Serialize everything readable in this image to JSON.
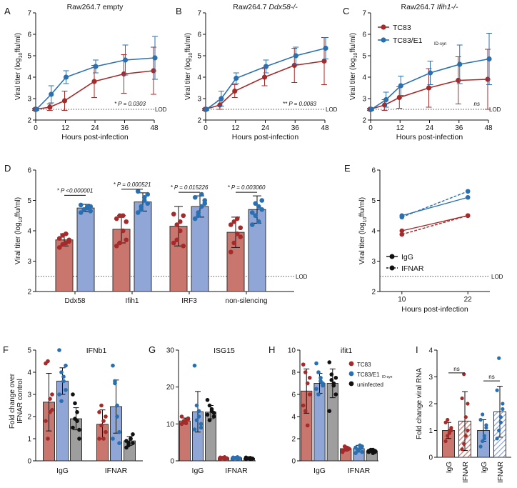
{
  "colors": {
    "red": "#a52a2a",
    "blue": "#2a6fb0",
    "red_fill": "#c9766f",
    "blue_fill": "#8fa6d6",
    "black": "#111111",
    "gray_fill": "#9e9e9e"
  },
  "chart_data": [
    {
      "id": "A",
      "panel_label": "A",
      "type": "line",
      "title": "Raw264.7 empty",
      "title_italic": "",
      "xlabel": "Hours post-infection",
      "ylabel": "Viral titer (log10 ffu/ml)",
      "x": [
        0,
        6,
        12,
        24,
        36,
        48
      ],
      "xticks": [
        "0",
        "12",
        "24",
        "36",
        "48"
      ],
      "xlim": [
        0,
        48
      ],
      "yticks": [
        "2",
        "3",
        "4",
        "5",
        "6",
        "7"
      ],
      "ylim": [
        2,
        7
      ],
      "series": [
        {
          "name": "TC83",
          "values": [
            2.5,
            2.6,
            2.9,
            3.8,
            4.15,
            4.3
          ],
          "err": [
            0.05,
            0.15,
            0.45,
            0.75,
            0.9,
            1.1
          ]
        },
        {
          "name": "TC83/E1 ID-syn",
          "values": [
            2.5,
            3.2,
            4.0,
            4.5,
            4.8,
            4.9
          ],
          "err": [
            0.05,
            0.4,
            0.3,
            0.3,
            0.7,
            1.0
          ]
        }
      ],
      "annotation": "* P = 0.0303",
      "lod": 2.5,
      "lod_label": "LOD"
    },
    {
      "id": "B",
      "panel_label": "B",
      "type": "line",
      "title": "Raw264.7 ",
      "title_italic": "Ddx58-/-",
      "xlabel": "Hours post-infection",
      "ylabel": "Viral titer (log10 ffu/ml)",
      "x": [
        0,
        6,
        12,
        24,
        36,
        48
      ],
      "xticks": [
        "0",
        "12",
        "24",
        "36",
        "48"
      ],
      "xlim": [
        0,
        48
      ],
      "yticks": [
        "2",
        "3",
        "4",
        "5",
        "6",
        "7"
      ],
      "ylim": [
        2,
        7
      ],
      "series": [
        {
          "name": "TC83",
          "values": [
            2.5,
            2.7,
            3.35,
            4.0,
            4.55,
            4.75
          ],
          "err": [
            0.05,
            0.2,
            0.3,
            0.4,
            0.8,
            1.1
          ]
        },
        {
          "name": "TC83/E1 ID-syn",
          "values": [
            2.5,
            3.0,
            3.95,
            4.5,
            5.0,
            5.35
          ],
          "err": [
            0.05,
            0.35,
            0.25,
            0.3,
            0.4,
            0.5
          ]
        }
      ],
      "annotation": "** P = 0.0083",
      "lod": 2.5,
      "lod_label": "LOD"
    },
    {
      "id": "C",
      "panel_label": "C",
      "type": "line",
      "title": "Raw264.7 ",
      "title_italic": "Ifih1-/-",
      "xlabel": "Hours post-infection",
      "ylabel": "Viral titer (log10 ffu/ml)",
      "x": [
        0,
        6,
        12,
        24,
        36,
        48
      ],
      "xticks": [
        "0",
        "12",
        "24",
        "36",
        "48"
      ],
      "xlim": [
        0,
        48
      ],
      "yticks": [
        "2",
        "3",
        "4",
        "5",
        "6",
        "7"
      ],
      "ylim": [
        2,
        7
      ],
      "series": [
        {
          "name": "TC83",
          "values": [
            2.5,
            2.7,
            3.05,
            3.5,
            3.85,
            3.9
          ],
          "err": [
            0.05,
            0.25,
            0.5,
            0.9,
            1.1,
            1.4
          ]
        },
        {
          "name": "TC83/E1 ID-syn",
          "values": [
            2.5,
            2.95,
            3.6,
            4.2,
            4.6,
            4.85
          ],
          "err": [
            0.05,
            0.35,
            0.45,
            0.55,
            0.9,
            1.2
          ]
        }
      ],
      "legend": [
        "TC83",
        "TC83/E1",
        "ID-syn"
      ],
      "annotation": "ns",
      "lod": 2.5,
      "lod_label": "LOD"
    },
    {
      "id": "D",
      "panel_label": "D",
      "type": "bar",
      "ylabel": "Viral titer (log10 ffu/ml)",
      "categories": [
        "Ddx58",
        "Ifih1",
        "IRF3",
        "non-silencing"
      ],
      "yticks": [
        "2",
        "3",
        "4",
        "5",
        "6"
      ],
      "ylim": [
        2,
        6
      ],
      "series": [
        {
          "name": "TC83",
          "values": [
            3.7,
            4.05,
            4.15,
            3.95
          ],
          "err": [
            0.2,
            0.45,
            0.65,
            0.5
          ]
        },
        {
          "name": "TC83/E1 ID-syn",
          "values": [
            4.75,
            4.95,
            4.8,
            4.7
          ],
          "err": [
            0.12,
            0.3,
            0.35,
            0.45
          ]
        }
      ],
      "points": [
        [
          [
            3.45,
            3.55,
            3.6,
            3.7,
            3.75,
            3.85,
            3.9,
            3.65
          ],
          [
            4.6,
            4.7,
            4.75,
            4.8,
            4.85,
            4.7,
            4.8,
            4.65
          ]
        ],
        [
          [
            3.5,
            3.6,
            4.0,
            4.3,
            4.4,
            4.5,
            4.5,
            3.7
          ],
          [
            4.6,
            4.8,
            5.0,
            5.2,
            5.3,
            4.7,
            5.1,
            4.9
          ]
        ],
        [
          [
            3.6,
            3.7,
            4.0,
            4.5,
            4.55,
            4.2,
            4.3,
            3.5
          ],
          [
            4.4,
            4.5,
            4.8,
            5.0,
            5.1,
            4.6,
            5.2,
            4.9
          ]
        ],
        [
          [
            3.3,
            3.6,
            3.9,
            4.1,
            4.2,
            4.3,
            4.4,
            3.8
          ],
          [
            4.2,
            4.5,
            4.8,
            5.0,
            4.6,
            4.9,
            4.3,
            4.7
          ]
        ]
      ],
      "annotations": [
        "* P <0.000001",
        "* P = 0.000521",
        "* P = 0.015226",
        "* P = 0.003060"
      ],
      "lod": 2.5,
      "lod_label": "LOD"
    },
    {
      "id": "E",
      "panel_label": "E",
      "type": "line",
      "xlabel": "Hours post-infection",
      "ylabel": "Viral titer (log10 ffu/ml)",
      "x": [
        10,
        22
      ],
      "xticks": [
        "10",
        "22"
      ],
      "xlim": [
        6,
        26
      ],
      "yticks": [
        "2",
        "3",
        "4",
        "5",
        "6"
      ],
      "ylim": [
        2,
        6
      ],
      "series": [
        {
          "name": "IgG",
          "color": "blue",
          "dash": false,
          "values": [
            4.5,
            5.1
          ]
        },
        {
          "name": "IFNAR",
          "color": "blue",
          "dash": true,
          "values": [
            4.45,
            5.3
          ]
        },
        {
          "name": "IgG",
          "color": "red",
          "dash": false,
          "values": [
            4.0,
            4.5
          ]
        },
        {
          "name": "IFNAR",
          "color": "red",
          "dash": true,
          "values": [
            3.88,
            4.5
          ]
        }
      ],
      "legend": [
        "IgG",
        "IFNAR"
      ],
      "lod": 2.5,
      "lod_label": "LOD"
    },
    {
      "id": "F",
      "panel_label": "F",
      "type": "bar",
      "title": "IFNb1",
      "ylabel": "Fold change over IFNAR control",
      "categories": [
        "IgG",
        "IFNAR"
      ],
      "yticks": [
        "0",
        "1",
        "2",
        "3",
        "4",
        "5"
      ],
      "ylim": [
        0,
        5
      ],
      "series": [
        {
          "name": "TC83",
          "values": [
            2.65,
            1.65
          ],
          "err": [
            1.3,
            0.65
          ]
        },
        {
          "name": "TC83/E1 ID-syn",
          "values": [
            3.6,
            2.45
          ],
          "err": [
            0.6,
            1.2
          ]
        },
        {
          "name": "uninfected",
          "values": [
            1.9,
            0.9
          ],
          "err": [
            0.5,
            0.2
          ]
        }
      ],
      "points": [
        [
          [
            4.4,
            4.5,
            2.8,
            2.3,
            1.8,
            1.0,
            2.2,
            3.0
          ],
          [
            1.0,
            2.5,
            1.8,
            1.3,
            2.2,
            1.6,
            1.0,
            2.0
          ]
        ],
        [
          [
            5.0,
            4.0,
            3.8,
            3.2,
            3.0,
            2.7,
            3.6,
            4.3
          ],
          [
            4.3,
            3.6,
            2.5,
            1.3,
            1.0,
            3.5,
            2.0,
            0.8
          ]
        ],
        [
          [
            3.0,
            2.6,
            1.8,
            1.4,
            1.5,
            1.9,
            2.2,
            1.0
          ],
          [
            0.6,
            0.8,
            1.0,
            1.2,
            0.9,
            0.7,
            1.0,
            0.8
          ]
        ]
      ]
    },
    {
      "id": "G",
      "panel_label": "G",
      "type": "bar",
      "title": "ISG15",
      "categories": [
        "IgG",
        "IFNAR"
      ],
      "yticks": [
        "0",
        "10",
        "20",
        "30"
      ],
      "ylim": [
        0,
        30
      ],
      "series": [
        {
          "name": "TC83",
          "values": [
            10.8,
            0.8
          ],
          "err": [
            0.8,
            0.2
          ]
        },
        {
          "name": "TC83/E1 ID-syn",
          "values": [
            13.3,
            0.8
          ],
          "err": [
            5.5,
            0.2
          ]
        },
        {
          "name": "uninfected",
          "values": [
            13.2,
            0.7
          ],
          "err": [
            1.8,
            0.2
          ]
        }
      ],
      "points": [
        [
          [
            10.0,
            10.5,
            11.0,
            11.5,
            12.0,
            10.8,
            10.2,
            11.3
          ],
          [
            0.6,
            0.8,
            1.0,
            0.7,
            0.9,
            0.8,
            0.6,
            0.7
          ]
        ],
        [
          [
            25.8,
            15.0,
            12.0,
            10.0,
            8.5,
            11.0,
            13.5,
            9.0
          ],
          [
            0.6,
            0.8,
            1.0,
            0.7,
            0.9,
            0.8,
            0.6,
            0.7
          ]
        ],
        [
          [
            16.5,
            15.0,
            13.5,
            12.0,
            12.5,
            11.0,
            14.0,
            13.0
          ],
          [
            0.5,
            0.7,
            0.8,
            0.6,
            0.9,
            0.7,
            0.5,
            0.6
          ]
        ]
      ]
    },
    {
      "id": "H",
      "panel_label": "H",
      "type": "bar",
      "title": "ifit1",
      "categories": [
        "IgG",
        "IFNAR"
      ],
      "yticks": [
        "0",
        "2",
        "4",
        "6",
        "8",
        "10"
      ],
      "ylim": [
        0,
        10
      ],
      "series": [
        {
          "name": "TC83",
          "values": [
            6.3,
            1.1
          ],
          "err": [
            2.0,
            0.2
          ]
        },
        {
          "name": "TC83/E1 ID-syn",
          "values": [
            7.0,
            1.1
          ],
          "err": [
            0.9,
            0.3
          ]
        },
        {
          "name": "uninfected",
          "values": [
            7.0,
            0.9
          ],
          "err": [
            1.3,
            0.1
          ]
        }
      ],
      "points": [
        [
          [
            8.7,
            8.0,
            7.0,
            6.0,
            5.0,
            4.5,
            3.2,
            7.5
          ],
          [
            0.8,
            1.0,
            1.2,
            1.1,
            0.9,
            1.3,
            1.0,
            1.1
          ]
        ],
        [
          [
            8.8,
            8.0,
            7.5,
            7.0,
            6.5,
            6.0,
            7.2,
            6.8
          ],
          [
            0.7,
            0.9,
            1.1,
            1.3,
            1.2,
            1.0,
            1.4,
            0.8
          ]
        ],
        [
          [
            8.9,
            7.8,
            7.0,
            6.0,
            4.5,
            7.3,
            6.8,
            7.5
          ],
          [
            0.8,
            0.9,
            1.0,
            0.8,
            0.9,
            1.0,
            0.7,
            0.9
          ]
        ]
      ],
      "legend": [
        "TC83",
        "TC83/E1",
        "ID-syn",
        "uninfected"
      ]
    },
    {
      "id": "I",
      "panel_label": "I",
      "type": "bar",
      "ylabel": "Fold change viral RNA",
      "categories": [
        "IgG",
        "IFNAR",
        "IgG",
        "IFNAR"
      ],
      "yticks": [
        "0",
        "1",
        "2",
        "3",
        "4"
      ],
      "ylim": [
        0,
        4
      ],
      "values": [
        1.0,
        1.35,
        1.0,
        1.7
      ],
      "err": [
        0.3,
        1.1,
        0.4,
        0.95
      ],
      "groups": [
        "TC83",
        "TC83",
        "TC83/E1 ID-syn",
        "TC83/E1 ID-syn"
      ],
      "points": [
        [
          0.6,
          0.8,
          1.0,
          1.1,
          1.3,
          1.4,
          0.9,
          1.0
        ],
        [
          0.3,
          0.5,
          1.5,
          2.0,
          2.2,
          3.1,
          0.8,
          1.0
        ],
        [
          0.4,
          0.6,
          0.8,
          1.2,
          1.4,
          1.6,
          0.7,
          1.1
        ],
        [
          0.7,
          1.0,
          1.5,
          2.0,
          2.5,
          3.7,
          1.3,
          1.8
        ]
      ],
      "annotations": [
        "ns",
        "ns"
      ]
    }
  ]
}
